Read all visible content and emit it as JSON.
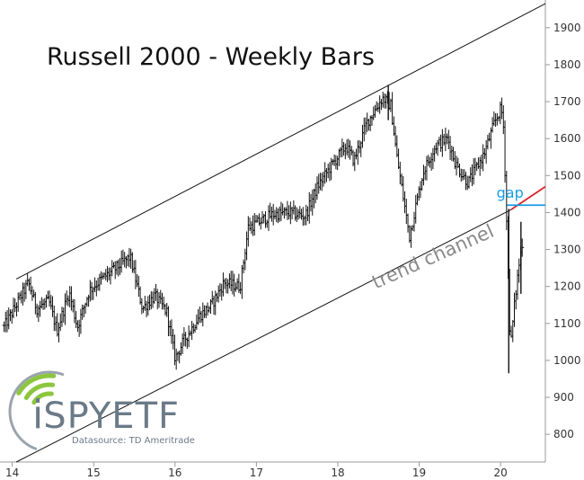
{
  "chart_data": {
    "type": "ohlc",
    "title": "Russell 2000 - Weekly Bars",
    "xlabel": "",
    "ylabel": "",
    "x_ticks": [
      "14",
      "15",
      "16",
      "17",
      "18",
      "19",
      "20"
    ],
    "y_ticks": [
      800,
      900,
      1000,
      1100,
      1200,
      1300,
      1400,
      1500,
      1600,
      1700,
      1800,
      1900
    ],
    "ylim": [
      725,
      1975
    ],
    "xlim": [
      2013.85,
      2020.55
    ],
    "y_axis_side": "right",
    "grid": false,
    "bar_color": "#111111",
    "weekly_closes": [
      [
        2013.9,
        1090
      ],
      [
        2014.0,
        1130
      ],
      [
        2014.2,
        1210
      ],
      [
        2014.3,
        1140
      ],
      [
        2014.45,
        1160
      ],
      [
        2014.55,
        1080
      ],
      [
        2014.7,
        1185
      ],
      [
        2014.8,
        1090
      ],
      [
        2014.95,
        1190
      ],
      [
        2015.1,
        1220
      ],
      [
        2015.25,
        1245
      ],
      [
        2015.45,
        1280
      ],
      [
        2015.6,
        1140
      ],
      [
        2015.75,
        1175
      ],
      [
        2015.9,
        1130
      ],
      [
        2016.0,
        1005
      ],
      [
        2016.1,
        1050
      ],
      [
        2016.3,
        1120
      ],
      [
        2016.45,
        1150
      ],
      [
        2016.6,
        1210
      ],
      [
        2016.8,
        1200
      ],
      [
        2016.9,
        1360
      ],
      [
        2017.0,
        1370
      ],
      [
        2017.2,
        1395
      ],
      [
        2017.4,
        1400
      ],
      [
        2017.6,
        1390
      ],
      [
        2017.75,
        1470
      ],
      [
        2017.9,
        1520
      ],
      [
        2018.1,
        1580
      ],
      [
        2018.2,
        1540
      ],
      [
        2018.35,
        1640
      ],
      [
        2018.55,
        1710
      ],
      [
        2018.65,
        1690
      ],
      [
        2018.72,
        1560
      ],
      [
        2018.88,
        1335
      ],
      [
        2018.95,
        1410
      ],
      [
        2019.05,
        1510
      ],
      [
        2019.2,
        1580
      ],
      [
        2019.35,
        1600
      ],
      [
        2019.45,
        1530
      ],
      [
        2019.6,
        1480
      ],
      [
        2019.7,
        1520
      ],
      [
        2019.8,
        1560
      ],
      [
        2019.92,
        1640
      ],
      [
        2020.0,
        1680
      ],
      [
        2020.03,
        1660
      ],
      [
        2020.06,
        1475
      ],
      [
        2020.12,
        1030
      ],
      [
        2020.17,
        1150
      ],
      [
        2020.22,
        1250
      ],
      [
        2020.28,
        1340
      ]
    ],
    "bar_high_low": [
      [
        2020.1,
        965,
        1410
      ],
      [
        2020.25,
        1180,
        1375
      ],
      [
        2018.62,
        1650,
        1745
      ]
    ],
    "trendlines": [
      {
        "name": "upper channel",
        "points": [
          [
            2014.05,
            1220
          ],
          [
            2020.55,
            1965
          ]
        ],
        "color": "#111111"
      },
      {
        "name": "lower channel",
        "points": [
          [
            2014.05,
            725
          ],
          [
            2020.13,
            1408
          ]
        ],
        "color": "#111111"
      },
      {
        "name": "lower channel extension",
        "points": [
          [
            2020.13,
            1408
          ],
          [
            2020.55,
            1470
          ]
        ],
        "color": "#d9232a"
      },
      {
        "name": "gap level",
        "points": [
          [
            2020.07,
            1420
          ],
          [
            2020.55,
            1420
          ]
        ],
        "color": "#1a9be6"
      }
    ],
    "annotations": [
      {
        "text": "gap",
        "x": 2019.95,
        "y": 1440,
        "color": "#1a9be6"
      },
      {
        "text": "trend channel",
        "x": 2019.2,
        "y": 1265,
        "color": "#8a8a8a"
      }
    ]
  },
  "watermark": {
    "logo_text": "iSPYETF",
    "source_text": "Datasource: TD Ameritrade",
    "color": "#6b7a88",
    "accent_color": "#8cc63f"
  }
}
